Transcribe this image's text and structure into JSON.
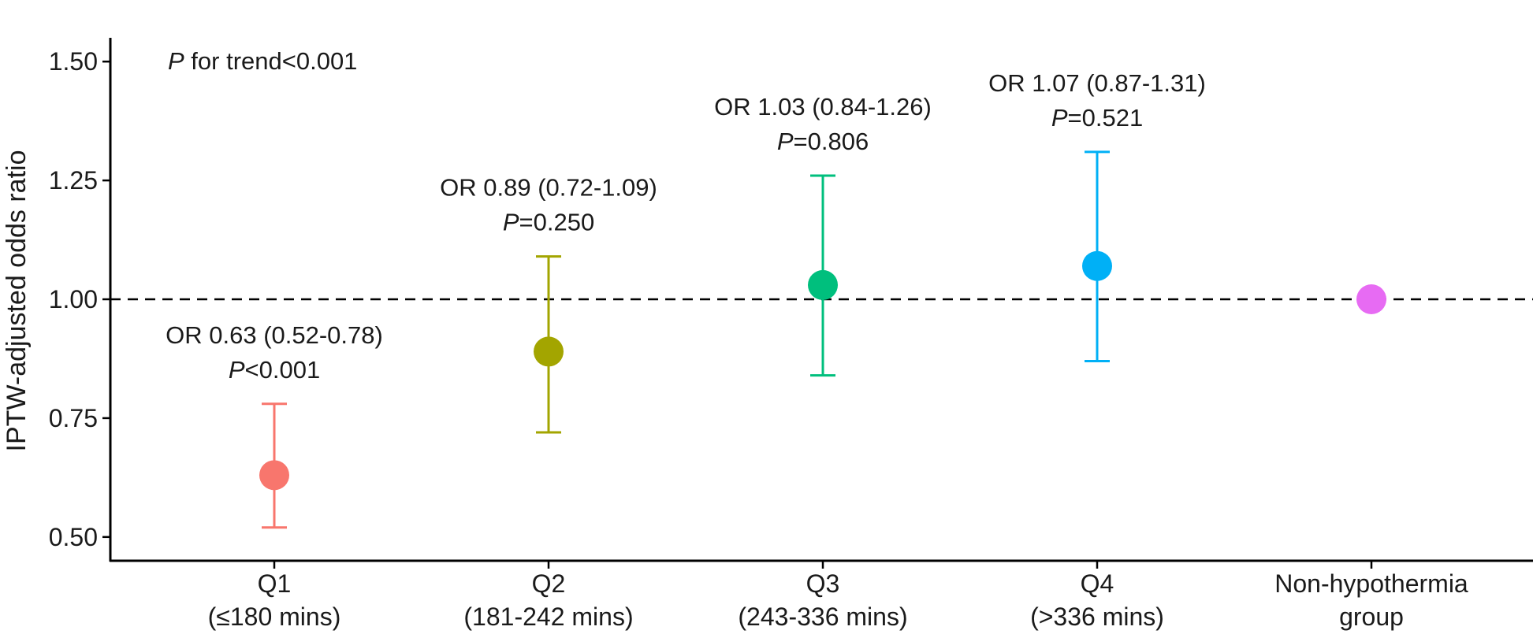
{
  "chart_data": {
    "type": "scatter",
    "ylabel": "IPTW-adjusted odds ratio",
    "ylim": [
      0.45,
      1.55
    ],
    "yticks": [
      "0.50",
      "0.75",
      "1.00",
      "1.25",
      "1.50"
    ],
    "reference_line": 1.0,
    "trend_note": {
      "p": "P",
      "text": " for trend<0.001"
    },
    "categories": [
      {
        "line1": "Q1",
        "line2": "(≤180 mins)"
      },
      {
        "line1": "Q2",
        "line2": "(181-242 mins)"
      },
      {
        "line1": "Q3",
        "line2": "(243-336 mins)"
      },
      {
        "line1": "Q4",
        "line2": "(>336 mins)"
      },
      {
        "line1": "Non-hypothermia",
        "line2": "group"
      }
    ],
    "points": [
      {
        "or": 0.63,
        "lower": 0.52,
        "upper": 0.78,
        "color": "#F8766D",
        "label": "OR 0.63 (0.52-0.78)",
        "p_sym": "P",
        "p_text": "<0.001"
      },
      {
        "or": 0.89,
        "lower": 0.72,
        "upper": 1.09,
        "color": "#A3A500",
        "label": "OR 0.89 (0.72-1.09)",
        "p_sym": "P",
        "p_text": "=0.250"
      },
      {
        "or": 1.03,
        "lower": 0.84,
        "upper": 1.26,
        "color": "#00BF7D",
        "label": "OR 1.03 (0.84-1.26)",
        "p_sym": "P",
        "p_text": "=0.806"
      },
      {
        "or": 1.07,
        "lower": 0.87,
        "upper": 1.31,
        "color": "#00B0F6",
        "label": "OR 1.07 (0.87-1.31)",
        "p_sym": "P",
        "p_text": "=0.521"
      },
      {
        "or": 1.0,
        "lower": null,
        "upper": null,
        "color": "#E76BF3",
        "label": "",
        "p_sym": "",
        "p_text": ""
      }
    ]
  }
}
